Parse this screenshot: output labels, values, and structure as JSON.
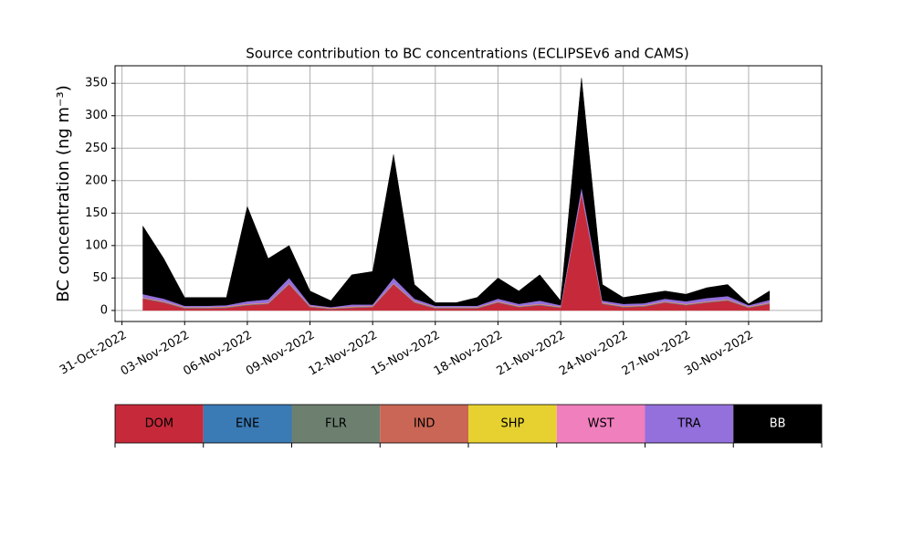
{
  "chart_data": {
    "type": "stacked_area",
    "title": "Source contribution to BC concentrations (ECLIPSEv6 and CAMS)",
    "y_label": "BC concentration (ng m⁻³)",
    "x": [
      "2022-11-01",
      "2022-11-02",
      "2022-11-03",
      "2022-11-04",
      "2022-11-05",
      "2022-11-06",
      "2022-11-07",
      "2022-11-08",
      "2022-11-09",
      "2022-11-10",
      "2022-11-11",
      "2022-11-12",
      "2022-11-13",
      "2022-11-14",
      "2022-11-15",
      "2022-11-16",
      "2022-11-17",
      "2022-11-18",
      "2022-11-19",
      "2022-11-20",
      "2022-11-21",
      "2022-11-22",
      "2022-11-23",
      "2022-11-24",
      "2022-11-25",
      "2022-11-26",
      "2022-11-27",
      "2022-11-28",
      "2022-11-29",
      "2022-11-30",
      "2022-12-01"
    ],
    "series": [
      {
        "name": "DOM",
        "color": "#c62a3a",
        "values": [
          18,
          12,
          3,
          3,
          4,
          8,
          10,
          40,
          5,
          2,
          4,
          5,
          40,
          12,
          3,
          3,
          3,
          12,
          5,
          8,
          4,
          180,
          10,
          5,
          6,
          12,
          8,
          12,
          15,
          4,
          10
        ]
      },
      {
        "name": "ENE",
        "color": "#3a7ab5",
        "values": [
          0.5,
          0.5,
          0.5,
          0.5,
          0.5,
          0.5,
          0.5,
          0.5,
          0.5,
          0.5,
          0.5,
          0.5,
          0.5,
          0.5,
          0.5,
          0.5,
          0.5,
          0.5,
          0.5,
          0.5,
          0.5,
          0.5,
          0.5,
          0.5,
          0.5,
          0.5,
          0.5,
          0.5,
          0.5,
          0.5,
          0.5
        ]
      },
      {
        "name": "FLR",
        "color": "#6d8070",
        "values": [
          0.2,
          0.2,
          0.2,
          0.2,
          0.2,
          0.2,
          0.2,
          0.2,
          0.2,
          0.2,
          0.2,
          0.2,
          0.2,
          0.2,
          0.2,
          0.2,
          0.2,
          0.2,
          0.2,
          0.2,
          0.2,
          0.2,
          0.2,
          0.2,
          0.2,
          0.2,
          0.2,
          0.2,
          0.2,
          0.2,
          0.2
        ]
      },
      {
        "name": "IND",
        "color": "#c96655",
        "values": [
          0.8,
          0.8,
          0.8,
          0.8,
          0.8,
          0.8,
          0.8,
          0.8,
          0.8,
          0.8,
          0.8,
          0.8,
          0.8,
          0.8,
          0.8,
          0.8,
          0.8,
          0.8,
          0.8,
          0.8,
          0.8,
          0.8,
          0.8,
          0.8,
          0.8,
          0.8,
          0.8,
          0.8,
          0.8,
          0.8,
          0.8
        ]
      },
      {
        "name": "SHP",
        "color": "#e6d130",
        "values": [
          0.3,
          0.3,
          0.3,
          0.3,
          0.3,
          0.3,
          0.3,
          0.3,
          0.3,
          0.3,
          0.3,
          0.3,
          0.3,
          0.3,
          0.3,
          0.3,
          0.3,
          0.3,
          0.3,
          0.3,
          0.3,
          0.3,
          0.3,
          0.3,
          0.3,
          0.3,
          0.3,
          0.3,
          0.3,
          0.3,
          0.3
        ]
      },
      {
        "name": "WST",
        "color": "#f07fbd",
        "values": [
          0.4,
          0.4,
          0.4,
          0.4,
          0.4,
          0.4,
          0.4,
          0.4,
          0.4,
          0.4,
          0.4,
          0.4,
          0.4,
          0.4,
          0.4,
          0.4,
          0.4,
          0.4,
          0.4,
          0.4,
          0.4,
          0.4,
          0.4,
          0.4,
          0.4,
          0.4,
          0.4,
          0.4,
          0.4,
          0.4,
          0.4
        ]
      },
      {
        "name": "TRA",
        "color": "#9370db",
        "values": [
          5,
          4,
          2,
          2,
          2,
          4,
          5,
          8,
          2,
          1,
          3,
          2,
          8,
          4,
          2,
          2,
          2,
          4,
          3,
          5,
          2,
          8,
          3,
          3,
          3,
          4,
          4,
          5,
          5,
          2,
          4
        ]
      },
      {
        "name": "BB",
        "color": "#000000",
        "values": [
          104.8,
          61.8,
          12.8,
          12.8,
          11.8,
          145.8,
          62.8,
          49.8,
          20.8,
          9.8,
          45.8,
          50.8,
          189.8,
          21.8,
          4.8,
          4.8,
          12.8,
          31.8,
          19.8,
          39.8,
          6.8,
          167.8,
          24.8,
          9.8,
          13.8,
          11.8,
          10.8,
          15.8,
          17.8,
          1.8,
          13.8
        ]
      }
    ],
    "xlim": [
      "2022-10-30T16:00",
      "2022-12-03T12:00"
    ],
    "xticks": [
      {
        "value": "2022-10-31",
        "label": "31-Oct-2022"
      },
      {
        "value": "2022-11-03",
        "label": "03-Nov-2022"
      },
      {
        "value": "2022-11-06",
        "label": "06-Nov-2022"
      },
      {
        "value": "2022-11-09",
        "label": "09-Nov-2022"
      },
      {
        "value": "2022-11-12",
        "label": "12-Nov-2022"
      },
      {
        "value": "2022-11-15",
        "label": "15-Nov-2022"
      },
      {
        "value": "2022-11-18",
        "label": "18-Nov-2022"
      },
      {
        "value": "2022-11-21",
        "label": "21-Nov-2022"
      },
      {
        "value": "2022-11-24",
        "label": "24-Nov-2022"
      },
      {
        "value": "2022-11-27",
        "label": "27-Nov-2022"
      },
      {
        "value": "2022-11-30",
        "label": "30-Nov-2022"
      }
    ],
    "ylim": [
      -17,
      377
    ],
    "yticks": [
      0,
      50,
      100,
      150,
      200,
      250,
      300,
      350
    ],
    "grid": true
  }
}
